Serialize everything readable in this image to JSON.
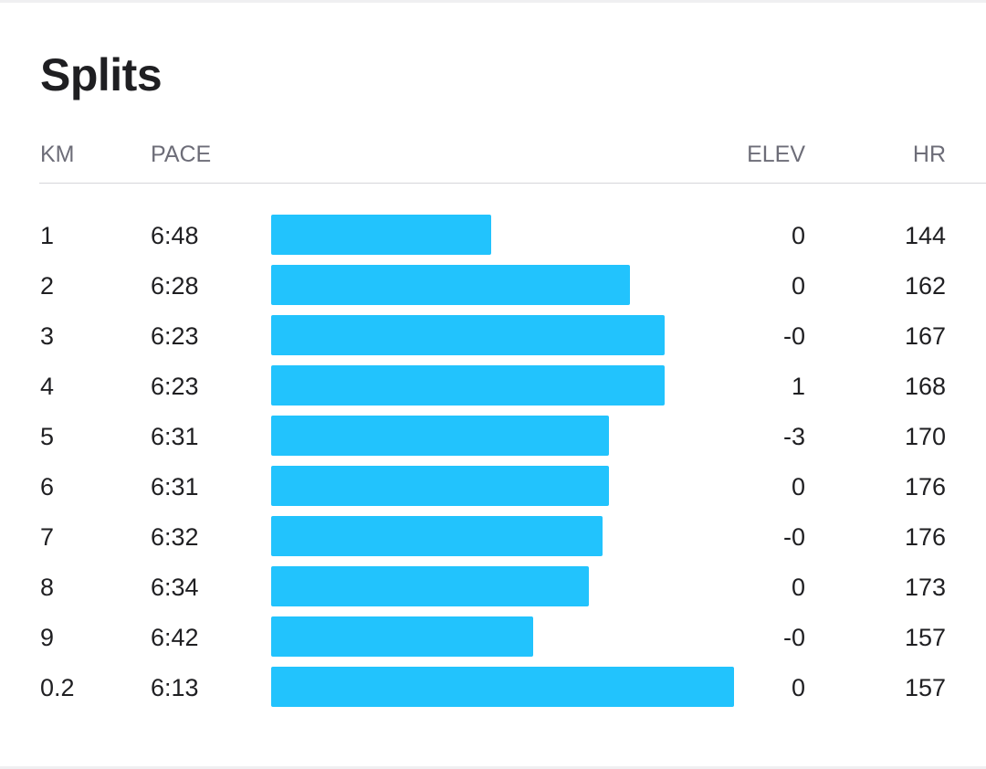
{
  "title": "Splits",
  "columns": {
    "km": "KM",
    "pace": "PACE",
    "elev": "ELEV",
    "hr": "HR"
  },
  "colors": {
    "bar": "#22c3fd",
    "header_text": "#6d6d78",
    "text": "#1f1f22"
  },
  "splits": [
    {
      "km": "1",
      "pace": "6:48",
      "pace_seconds": 408,
      "elev": "0",
      "hr": "144"
    },
    {
      "km": "2",
      "pace": "6:28",
      "pace_seconds": 388,
      "elev": "0",
      "hr": "162"
    },
    {
      "km": "3",
      "pace": "6:23",
      "pace_seconds": 383,
      "elev": "-0",
      "hr": "167"
    },
    {
      "km": "4",
      "pace": "6:23",
      "pace_seconds": 383,
      "elev": "1",
      "hr": "168"
    },
    {
      "km": "5",
      "pace": "6:31",
      "pace_seconds": 391,
      "elev": "-3",
      "hr": "170"
    },
    {
      "km": "6",
      "pace": "6:31",
      "pace_seconds": 391,
      "elev": "0",
      "hr": "176"
    },
    {
      "km": "7",
      "pace": "6:32",
      "pace_seconds": 392,
      "elev": "-0",
      "hr": "176"
    },
    {
      "km": "8",
      "pace": "6:34",
      "pace_seconds": 394,
      "elev": "0",
      "hr": "173"
    },
    {
      "km": "9",
      "pace": "6:42",
      "pace_seconds": 402,
      "elev": "-0",
      "hr": "157"
    },
    {
      "km": "0.2",
      "pace": "6:13",
      "pace_seconds": 373,
      "elev": "0",
      "hr": "157"
    }
  ]
}
